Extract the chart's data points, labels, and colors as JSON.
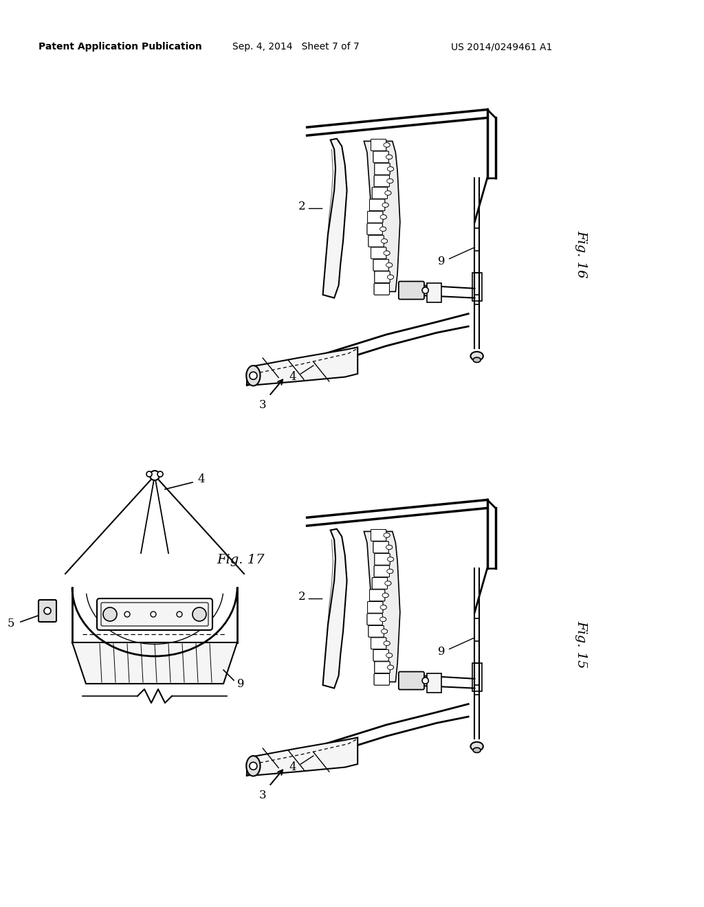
{
  "bg_color": "#ffffff",
  "header_text1": "Patent Application Publication",
  "header_text2": "Sep. 4, 2014   Sheet 7 of 7",
  "header_text3": "US 2014/0249461 A1",
  "fig16_label": "Fig. 16",
  "fig17_label": "Fig. 17",
  "fig15_label": "Fig. 15",
  "line_color": "#000000",
  "text_color": "#000000",
  "gray_light": "#f5f5f5",
  "gray_mid": "#e0e0e0",
  "gray_dark": "#c0c0c0"
}
